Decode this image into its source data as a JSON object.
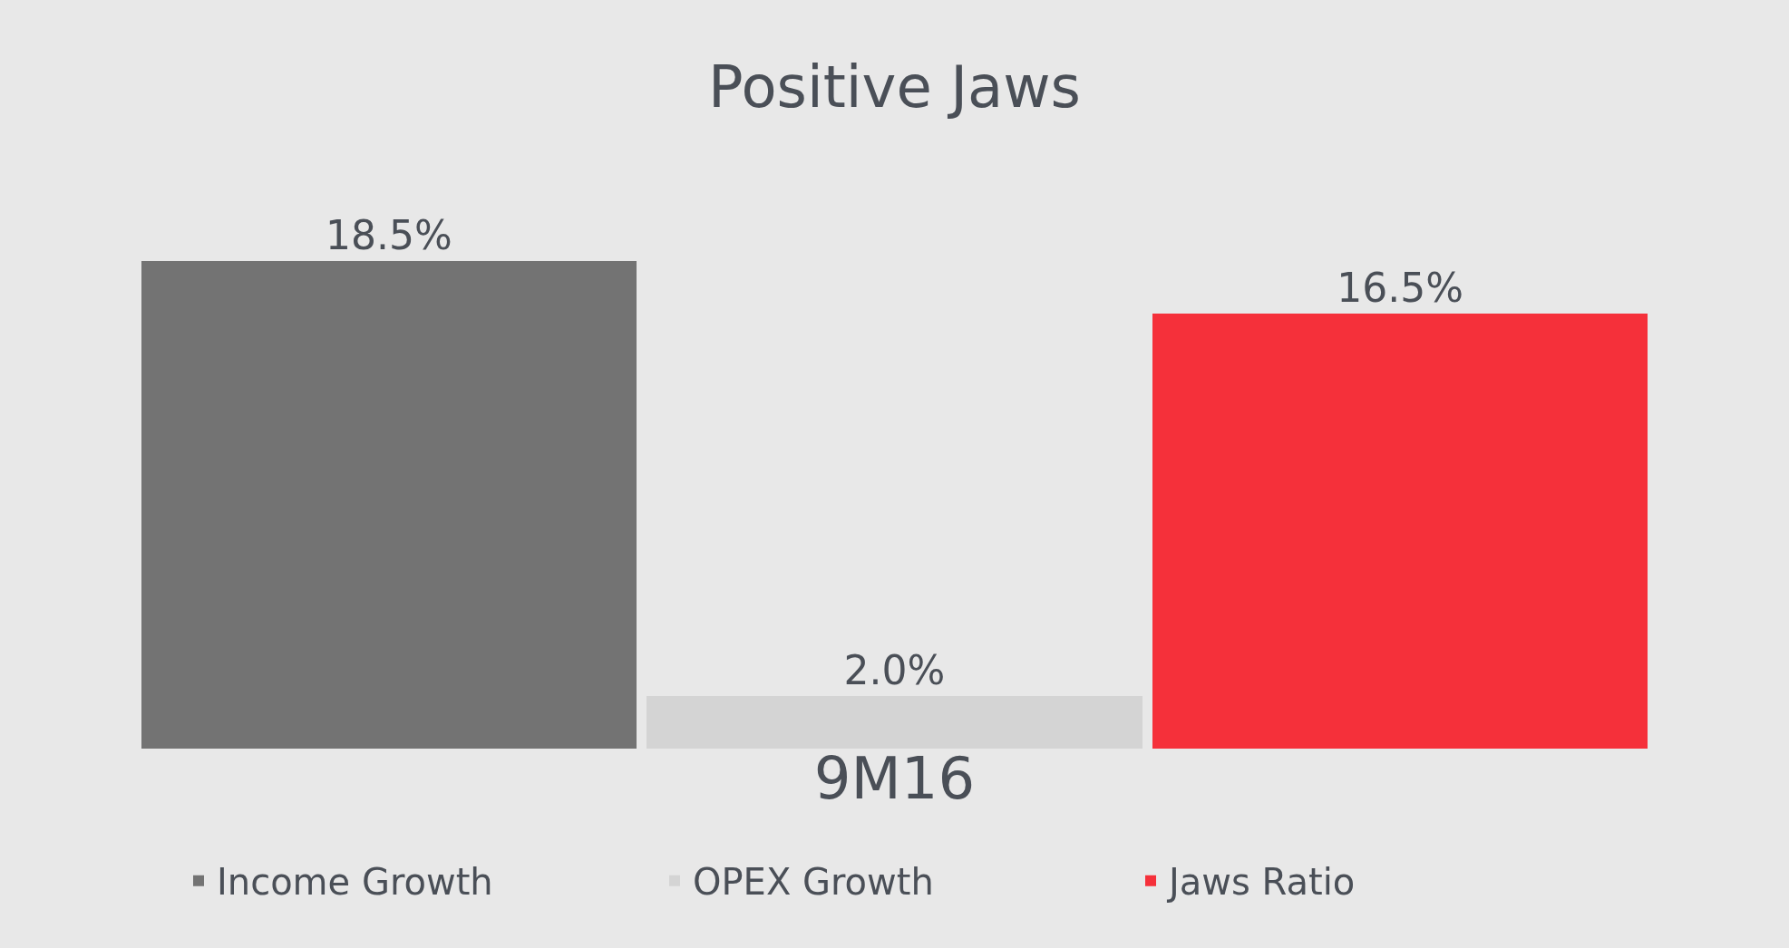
{
  "chart_data": {
    "type": "bar",
    "title": "Positive Jaws",
    "xlabel": "9M16",
    "categories": [
      null,
      null,
      null
    ],
    "stacked": true,
    "series": [
      {
        "name": "Income Growth",
        "color": "#737373",
        "values": [
          18.5,
          null,
          null
        ],
        "value_labels": [
          "18.5%",
          null,
          null
        ]
      },
      {
        "name": "OPEX Growth",
        "color": "#d4d4d4",
        "values": [
          null,
          2.0,
          null
        ],
        "value_labels": [
          null,
          "2.0%",
          null
        ]
      },
      {
        "name": "Jaws Ratio",
        "color": "#f5303a",
        "values": [
          null,
          null,
          16.5
        ],
        "value_labels": [
          null,
          null,
          "16.5%"
        ]
      }
    ],
    "legend": "bottom"
  }
}
